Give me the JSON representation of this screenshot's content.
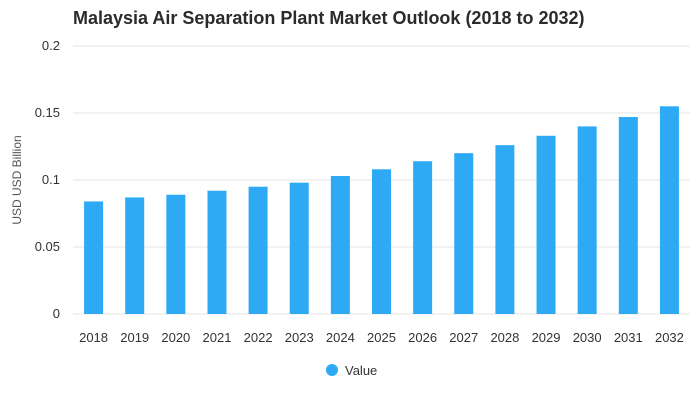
{
  "chart_data": {
    "type": "bar",
    "title": "Malaysia Air Separation Plant Market Outlook (2018 to 2032)",
    "xlabel": "",
    "ylabel": "USD USD Billion",
    "categories": [
      "2018",
      "2019",
      "2020",
      "2021",
      "2022",
      "2023",
      "2024",
      "2025",
      "2026",
      "2027",
      "2028",
      "2029",
      "2030",
      "2031",
      "2032"
    ],
    "series": [
      {
        "name": "Value",
        "values": [
          0.084,
          0.087,
          0.089,
          0.092,
          0.095,
          0.098,
          0.103,
          0.108,
          0.114,
          0.12,
          0.126,
          0.133,
          0.14,
          0.147,
          0.155
        ]
      }
    ],
    "ylim": [
      0,
      0.2
    ],
    "yticks": [
      "0",
      "0.05",
      "0.1",
      "0.15",
      "0.2"
    ],
    "grid": true,
    "legend": "bottom-center",
    "colors": {
      "bar": "#2eaaf5",
      "grid": "#e6e6e6"
    }
  }
}
